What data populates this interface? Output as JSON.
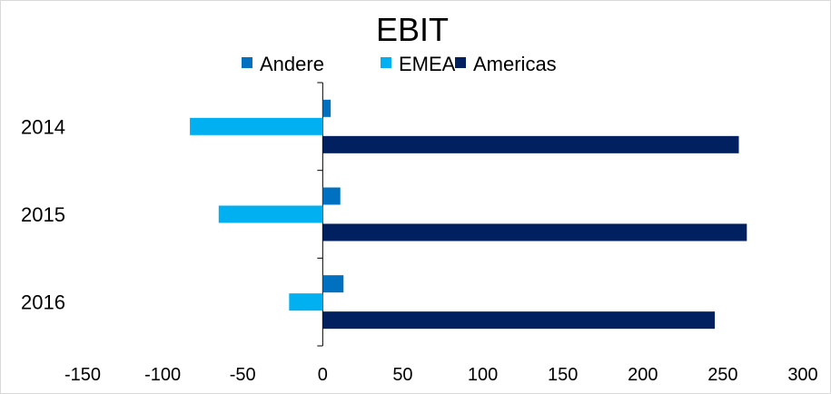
{
  "chart_data": {
    "type": "bar",
    "orientation": "horizontal",
    "title": "EBIT",
    "categories": [
      "2014",
      "2015",
      "2016"
    ],
    "series": [
      {
        "name": "Andere",
        "color": "#0070c0",
        "values": [
          5,
          11,
          13
        ]
      },
      {
        "name": "EMEA",
        "color": "#00b0f0",
        "values": [
          -83,
          -65,
          -21
        ]
      },
      {
        "name": "Americas",
        "color": "#002060",
        "values": [
          260,
          265,
          245
        ]
      }
    ],
    "xlim": [
      -150,
      300
    ],
    "xticks": [
      -150,
      -100,
      -50,
      0,
      50,
      100,
      150,
      200,
      250,
      300
    ],
    "xtick_labels": [
      "-150",
      "-100",
      "-50",
      "0",
      "50",
      "100",
      "150",
      "200",
      "250",
      "300"
    ],
    "legend_position": "top",
    "grid": false
  }
}
